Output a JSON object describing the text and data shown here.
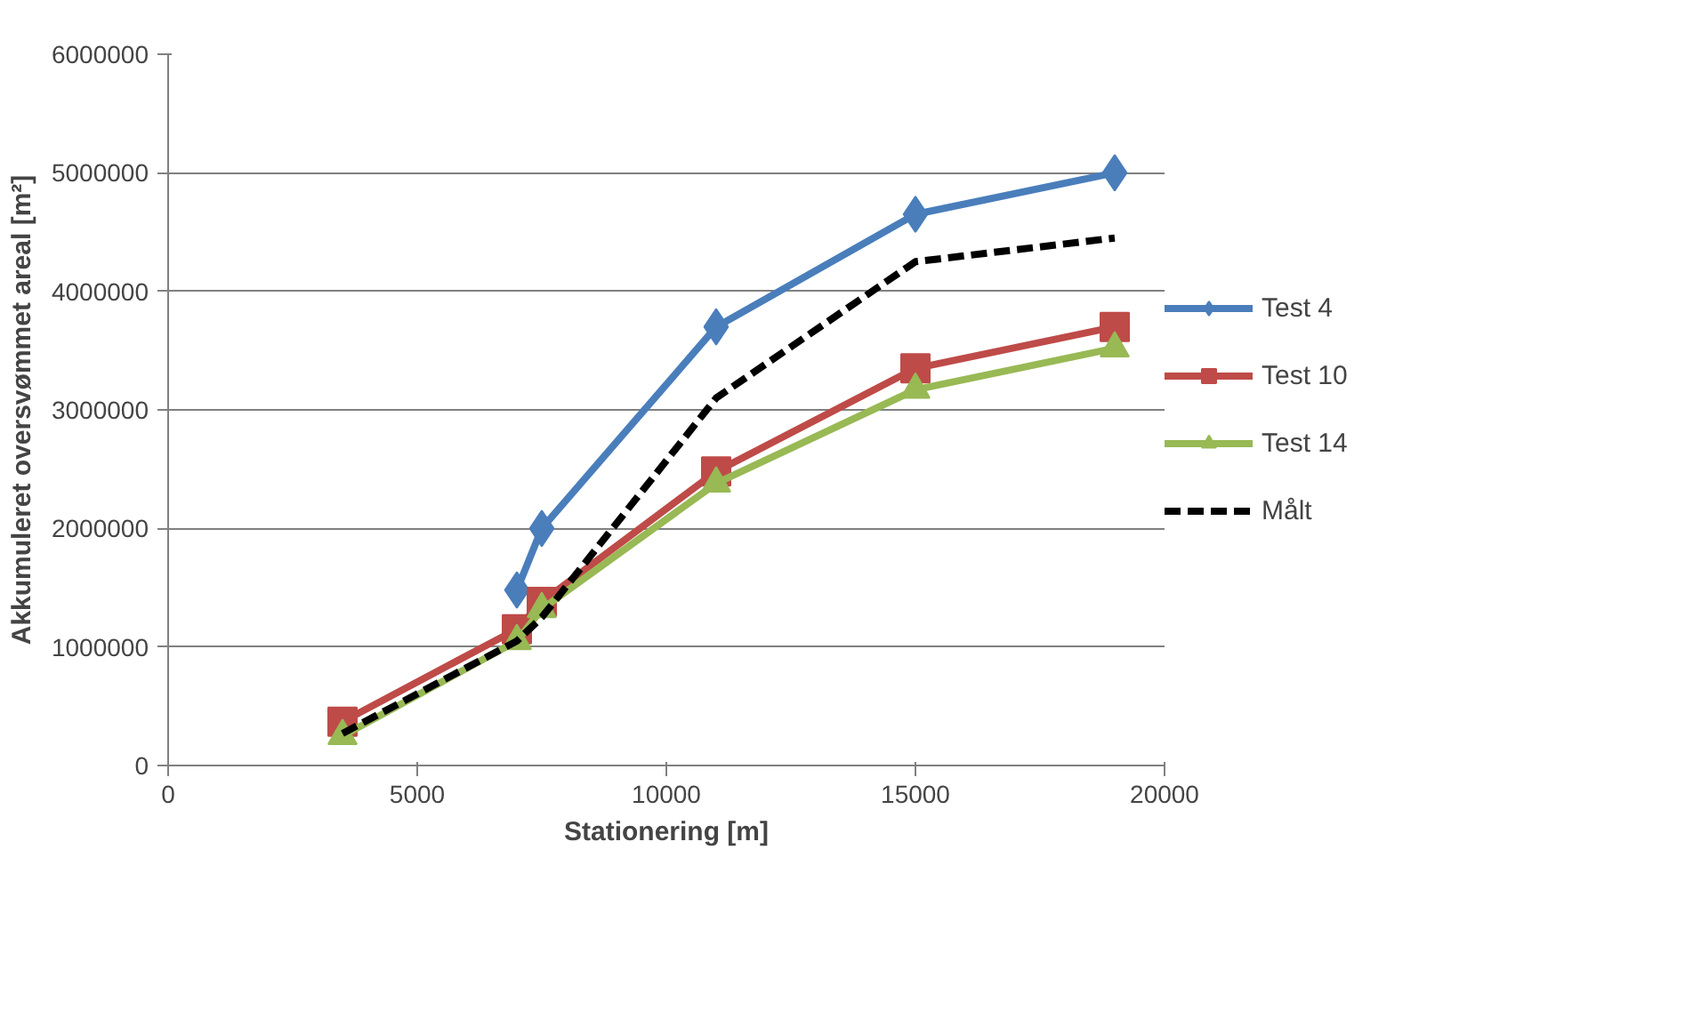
{
  "chart_data": {
    "type": "line",
    "xlabel": "Stationering [m]",
    "ylabel": "Akkumuleret oversvømmet areal [m²]",
    "x": [
      3500,
      7000,
      7500,
      11000,
      15000,
      19000
    ],
    "xlim": [
      0,
      20000
    ],
    "xticks": [
      0,
      5000,
      10000,
      15000,
      20000
    ],
    "ylim": [
      0,
      6000000
    ],
    "yticks": [
      0,
      1000000,
      2000000,
      3000000,
      4000000,
      5000000,
      6000000
    ],
    "grid": "y",
    "legend": "right",
    "series": [
      {
        "name": "Test 4",
        "color": "#4a7ebb",
        "marker": "diamond",
        "line_style": "solid",
        "values": [
          null,
          1480000,
          2000000,
          3700000,
          4650000,
          5000000
        ]
      },
      {
        "name": "Test 10",
        "color": "#be4b48",
        "marker": "square",
        "line_style": "solid",
        "values": [
          370000,
          1150000,
          1380000,
          2480000,
          3350000,
          3700000
        ]
      },
      {
        "name": "Test 14",
        "color": "#98b954",
        "marker": "triangle",
        "line_style": "solid",
        "values": [
          250000,
          1050000,
          1320000,
          2380000,
          3170000,
          3520000
        ]
      },
      {
        "name": "Målt",
        "color": "#000000",
        "marker": "none",
        "line_style": "dashed",
        "values": [
          270000,
          1050000,
          1250000,
          3100000,
          4250000,
          4450000
        ]
      }
    ]
  }
}
